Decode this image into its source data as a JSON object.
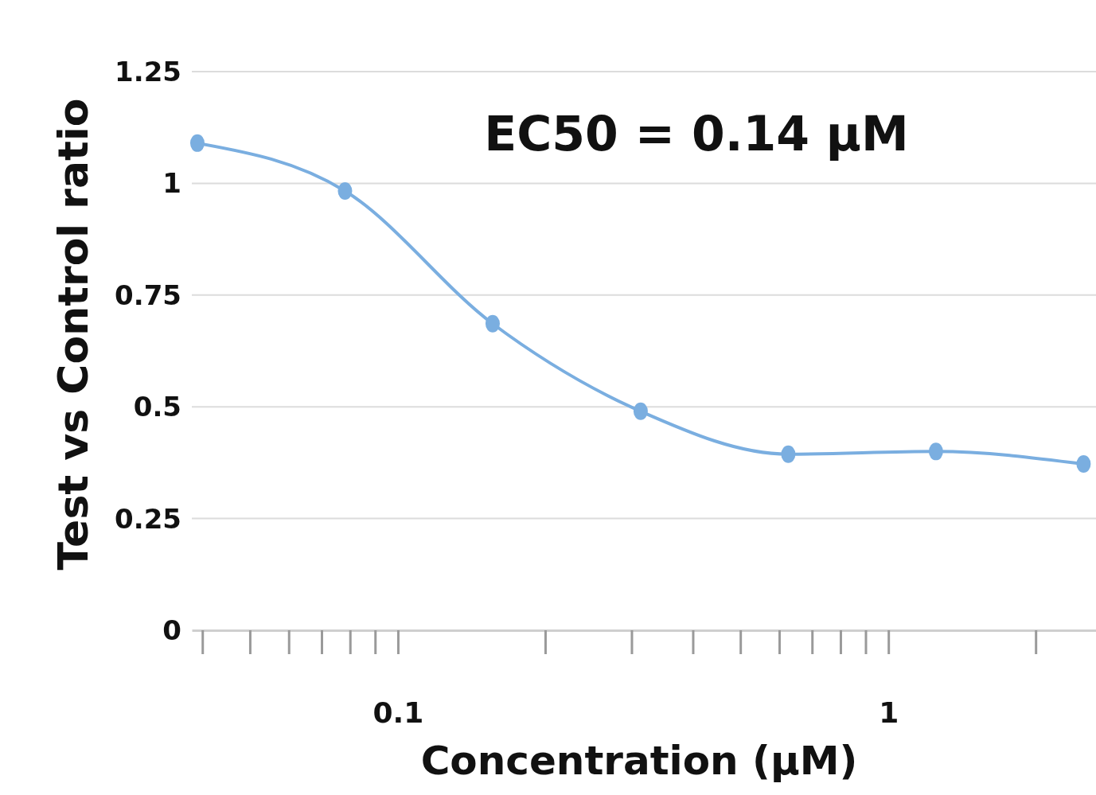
{
  "chart_data": {
    "type": "line",
    "xlabel": "Concentration (μM)",
    "ylabel": "Test vs Control ratio",
    "annotations": [
      "EC50 = 0.14 μM"
    ],
    "x": [
      0.039,
      0.078,
      0.156,
      0.3125,
      0.625,
      1.25,
      2.5
    ],
    "series": [
      {
        "color": "#7aaee0",
        "values": [
          1.09,
          0.983,
          0.686,
          0.49,
          0.394,
          0.4,
          0.372
        ]
      }
    ],
    "log": "x",
    "xlim": [
      0.038,
      2.65
    ],
    "xticks": [
      0.1,
      1
    ],
    "ylim": [
      0,
      1.25
    ],
    "yticks": [
      0,
      0.25,
      0.5,
      0.75,
      1,
      1.25
    ],
    "grid": "y",
    "marker": "circle",
    "line_style": "solid"
  }
}
